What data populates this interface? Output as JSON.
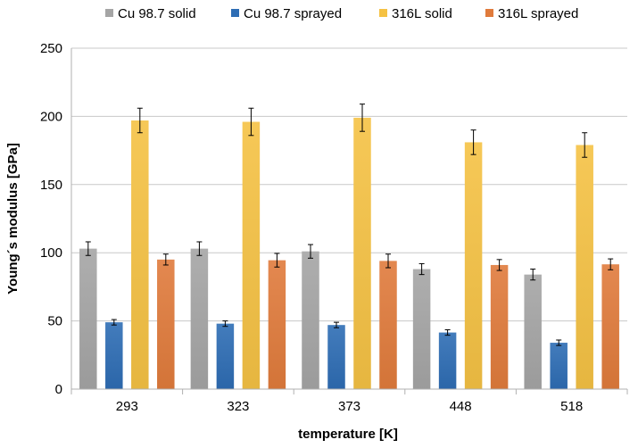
{
  "chart_data": {
    "type": "bar",
    "title": "",
    "xlabel": "temperature [K]",
    "ylabel": "Young´s modulus [GPa]",
    "ylim": [
      0,
      250
    ],
    "yticks": [
      0,
      50,
      100,
      150,
      200,
      250
    ],
    "grid": "horizontal",
    "legend_position": "top",
    "categories": [
      "293",
      "323",
      "373",
      "448",
      "518"
    ],
    "series": [
      {
        "name": "Cu 98.7 solid",
        "color": "#a5a5a5",
        "values": [
          103,
          103,
          101,
          88,
          84
        ],
        "errors": [
          5,
          5,
          5,
          4,
          4
        ]
      },
      {
        "name": "Cu 98.7 sprayed",
        "color": "#2e6db4",
        "values": [
          49,
          48,
          47,
          41.5,
          34
        ],
        "errors": [
          2,
          2,
          2,
          2,
          2
        ]
      },
      {
        "name": "316L solid",
        "color": "#f5c244",
        "values": [
          197,
          196,
          199,
          181,
          179
        ],
        "errors": [
          9,
          10,
          10,
          9,
          9
        ]
      },
      {
        "name": "316L sprayed",
        "color": "#e07b3c",
        "values": [
          95,
          94.5,
          94,
          91,
          91.5
        ],
        "errors": [
          4,
          5,
          5,
          4,
          4
        ]
      }
    ]
  }
}
